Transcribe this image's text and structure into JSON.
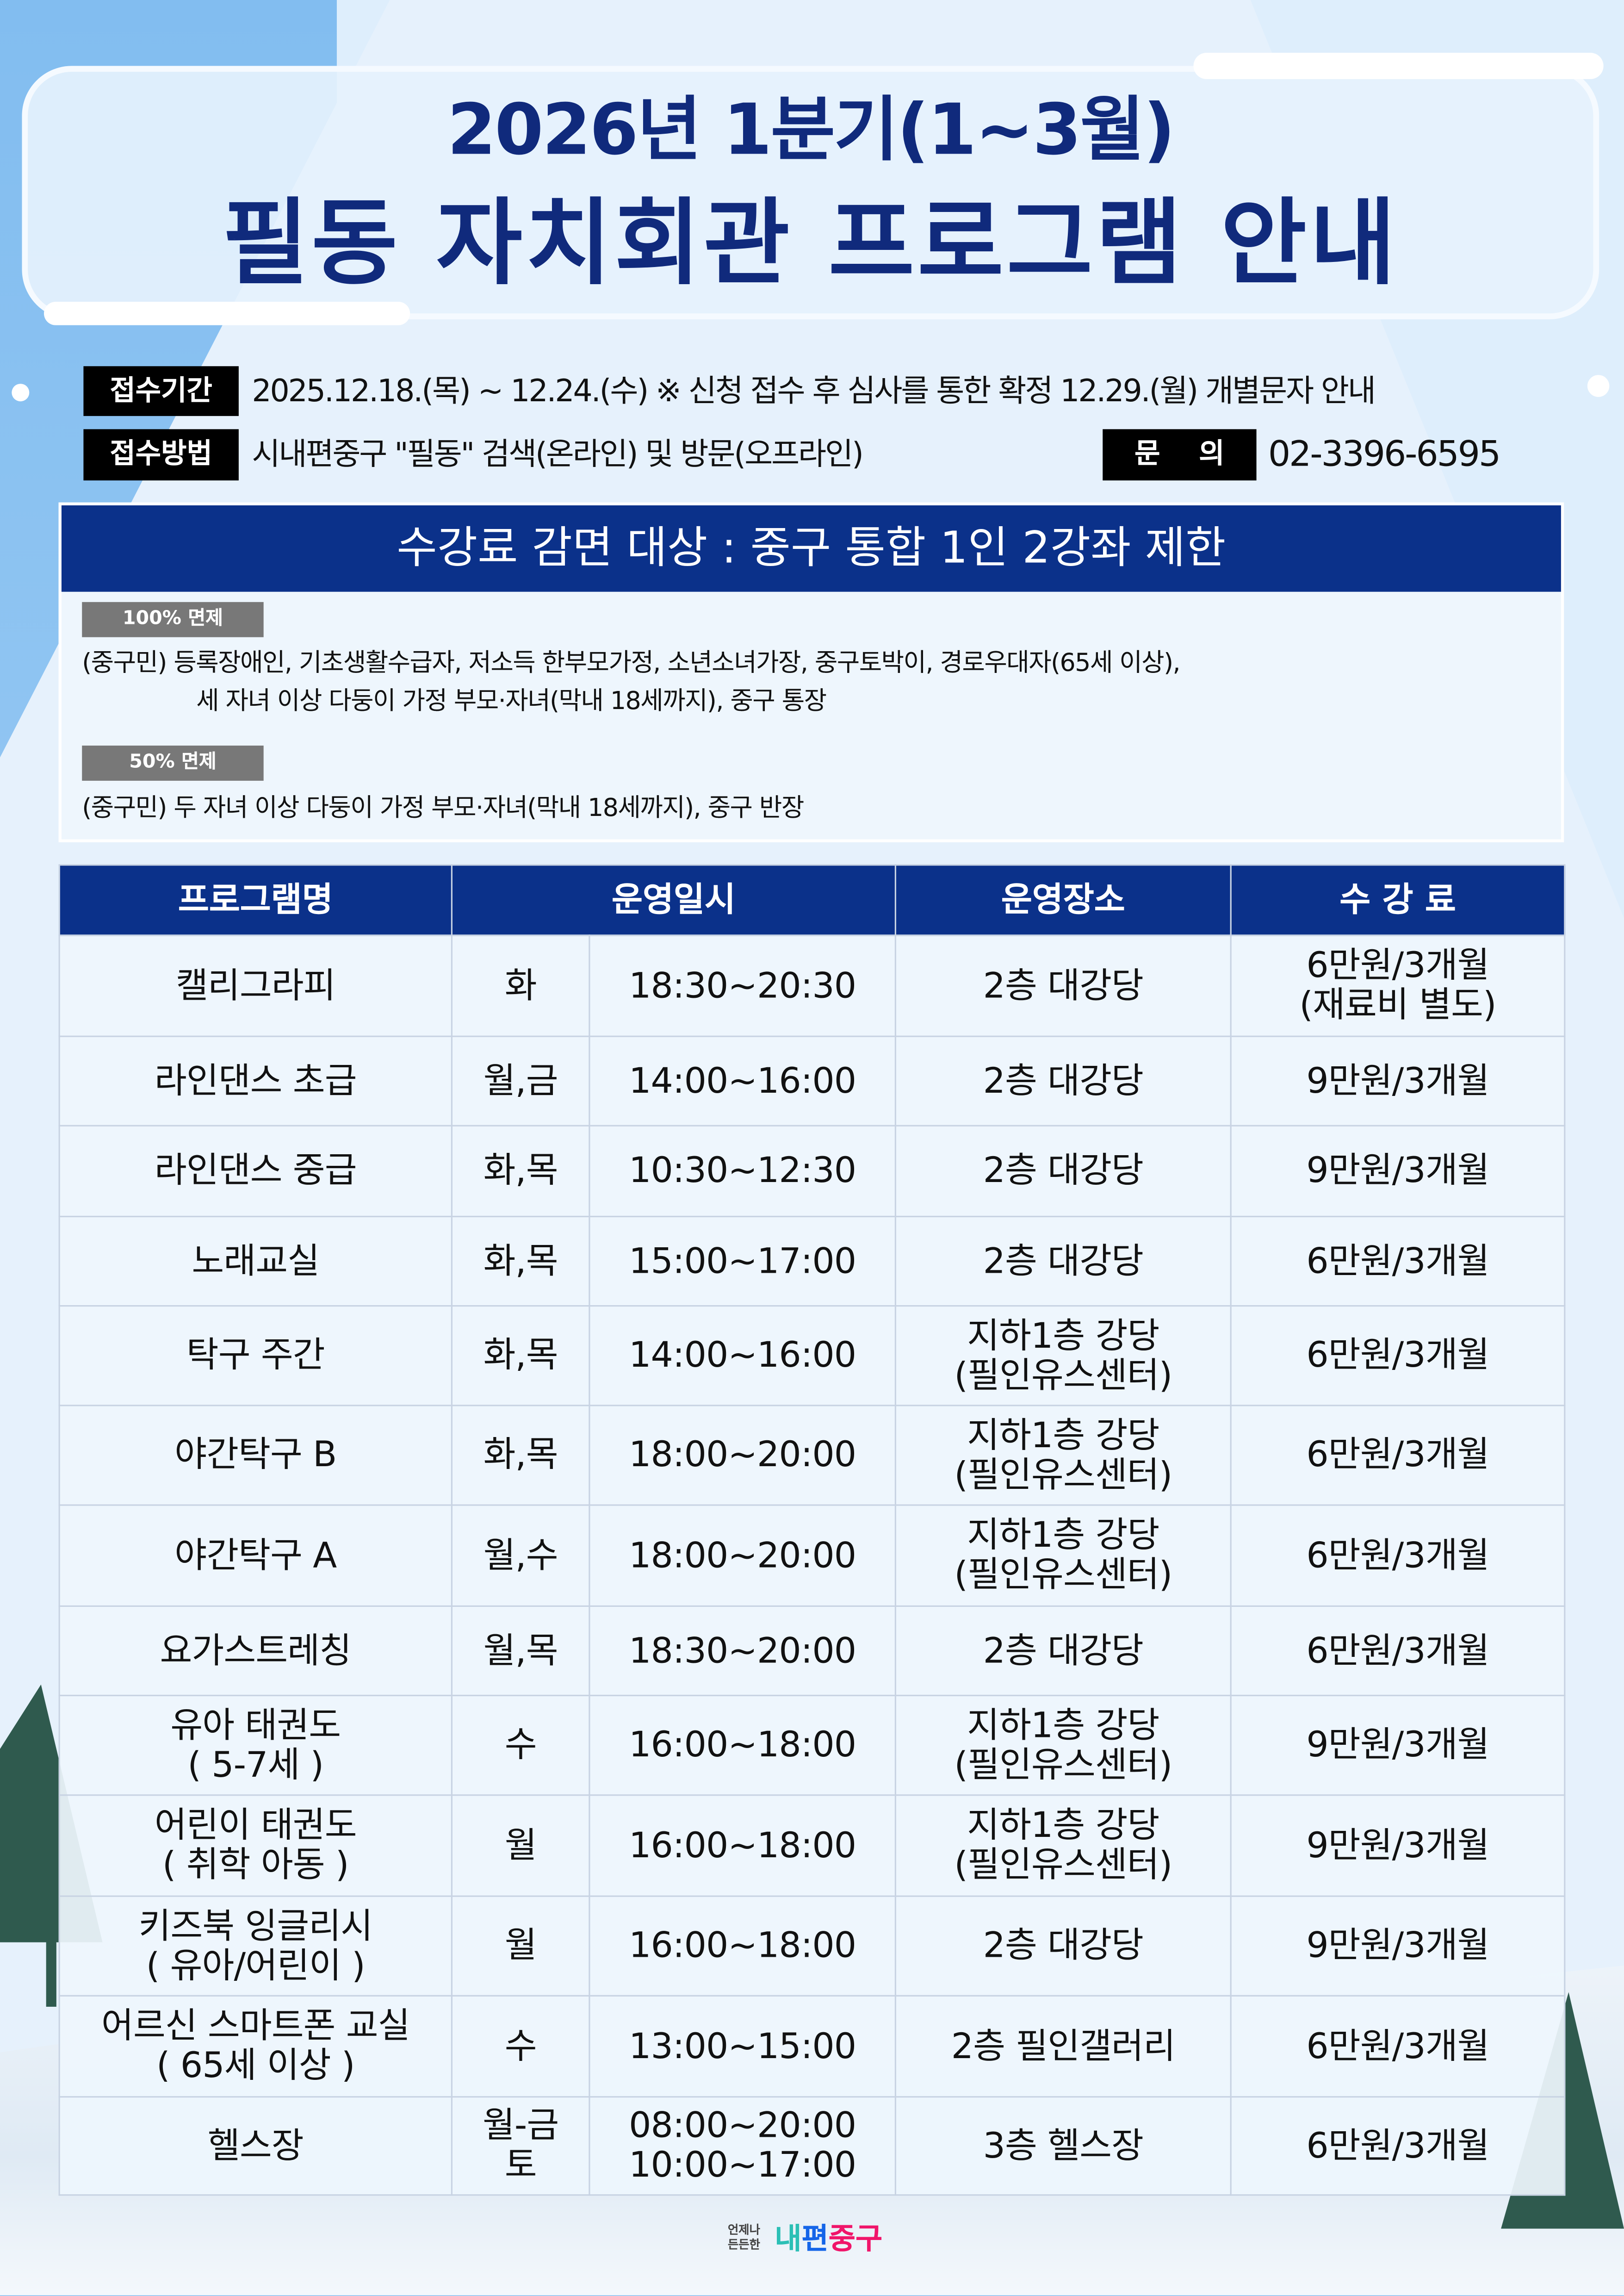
{
  "title": {
    "line1": "2026년 1분기(1~3월)",
    "line2": "필동 자치회관 프로그램 안내"
  },
  "info": {
    "period_label": "접수기간",
    "period_text": "2025.12.18.(목) ~ 12.24.(수)  ※ 신청 접수 후 심사를 통한 확정 12.29.(월) 개별문자 안내",
    "method_label": "접수방법",
    "method_text": "시내편중구 \"필동\" 검색(온라인) 및 방문(오프라인)",
    "contact_label": "문    의",
    "contact_phone": "02-3396-6595"
  },
  "discount": {
    "header": "수강료 감면 대상 : 중구 통합 1인 2강좌 제한",
    "full": {
      "badge": "100% 면제",
      "line1": "(중구민) 등록장애인, 기초생활수급자, 저소득 한부모가정, 소년소녀가장, 중구토박이, 경로우대자(65세 이상),",
      "line2": "세 자녀 이상 다둥이 가정 부모·자녀(막내 18세까지), 중구 통장"
    },
    "half": {
      "badge": "50% 면제",
      "line1": "(중구민) 두 자녀 이상 다둥이 가정 부모·자녀(막내 18세까지), 중구 반장"
    }
  },
  "table": {
    "headers": [
      "프로그램명",
      "운영일시",
      "운영장소",
      "수 강 료"
    ],
    "rows": [
      {
        "name": "캘리그라피",
        "day": "화",
        "time": "18:30~20:30",
        "place": "2층 대강당",
        "fee": "6만원/3개월\n(재료비 별도)"
      },
      {
        "name": "라인댄스 초급",
        "day": "월,금",
        "time": "14:00~16:00",
        "place": "2층 대강당",
        "fee": "9만원/3개월"
      },
      {
        "name": "라인댄스 중급",
        "day": "화,목",
        "time": "10:30~12:30",
        "place": "2층 대강당",
        "fee": "9만원/3개월"
      },
      {
        "name": "노래교실",
        "day": "화,목",
        "time": "15:00~17:00",
        "place": "2층 대강당",
        "fee": "6만원/3개월"
      },
      {
        "name": "탁구 주간",
        "day": "화,목",
        "time": "14:00~16:00",
        "place": "지하1층 강당\n(필인유스센터)",
        "fee": "6만원/3개월"
      },
      {
        "name": "야간탁구 B",
        "day": "화,목",
        "time": "18:00~20:00",
        "place": "지하1층 강당\n(필인유스센터)",
        "fee": "6만원/3개월"
      },
      {
        "name": "야간탁구 A",
        "day": "월,수",
        "time": "18:00~20:00",
        "place": "지하1층 강당\n(필인유스센터)",
        "fee": "6만원/3개월"
      },
      {
        "name": "요가스트레칭",
        "day": "월,목",
        "time": "18:30~20:00",
        "place": "2층 대강당",
        "fee": "6만원/3개월"
      },
      {
        "name": "유아 태권도\n( 5-7세 )",
        "day": "수",
        "time": "16:00~18:00",
        "place": "지하1층 강당\n(필인유스센터)",
        "fee": "9만원/3개월"
      },
      {
        "name": "어린이 태권도\n( 취학 아동 )",
        "day": "월",
        "time": "16:00~18:00",
        "place": "지하1층 강당\n(필인유스센터)",
        "fee": "9만원/3개월"
      },
      {
        "name": "키즈북 잉글리시\n( 유아/어린이 )",
        "day": "월",
        "time": "16:00~18:00",
        "place": "2층 대강당",
        "fee": "9만원/3개월"
      },
      {
        "name": "어르신 스마트폰 교실\n( 65세 이상 )",
        "day": "수",
        "time": "13:00~15:00",
        "place": "2층 필인갤러리",
        "fee": "6만원/3개월"
      },
      {
        "name": "헬스장",
        "day": "월-금\n토",
        "time": "08:00~20:00\n10:00~17:00",
        "place": "3층 헬스장",
        "fee": "6만원/3개월"
      }
    ]
  },
  "logo": {
    "slogan": "언제나 든든한",
    "part1": "내",
    "part2": "편",
    "part3": "중구",
    "colors": [
      "#2bbfb5",
      "#1565e8",
      "#f0156a"
    ]
  },
  "colors": {
    "navy": "#0b318a",
    "title": "#102a7c",
    "badge": "#787878"
  }
}
